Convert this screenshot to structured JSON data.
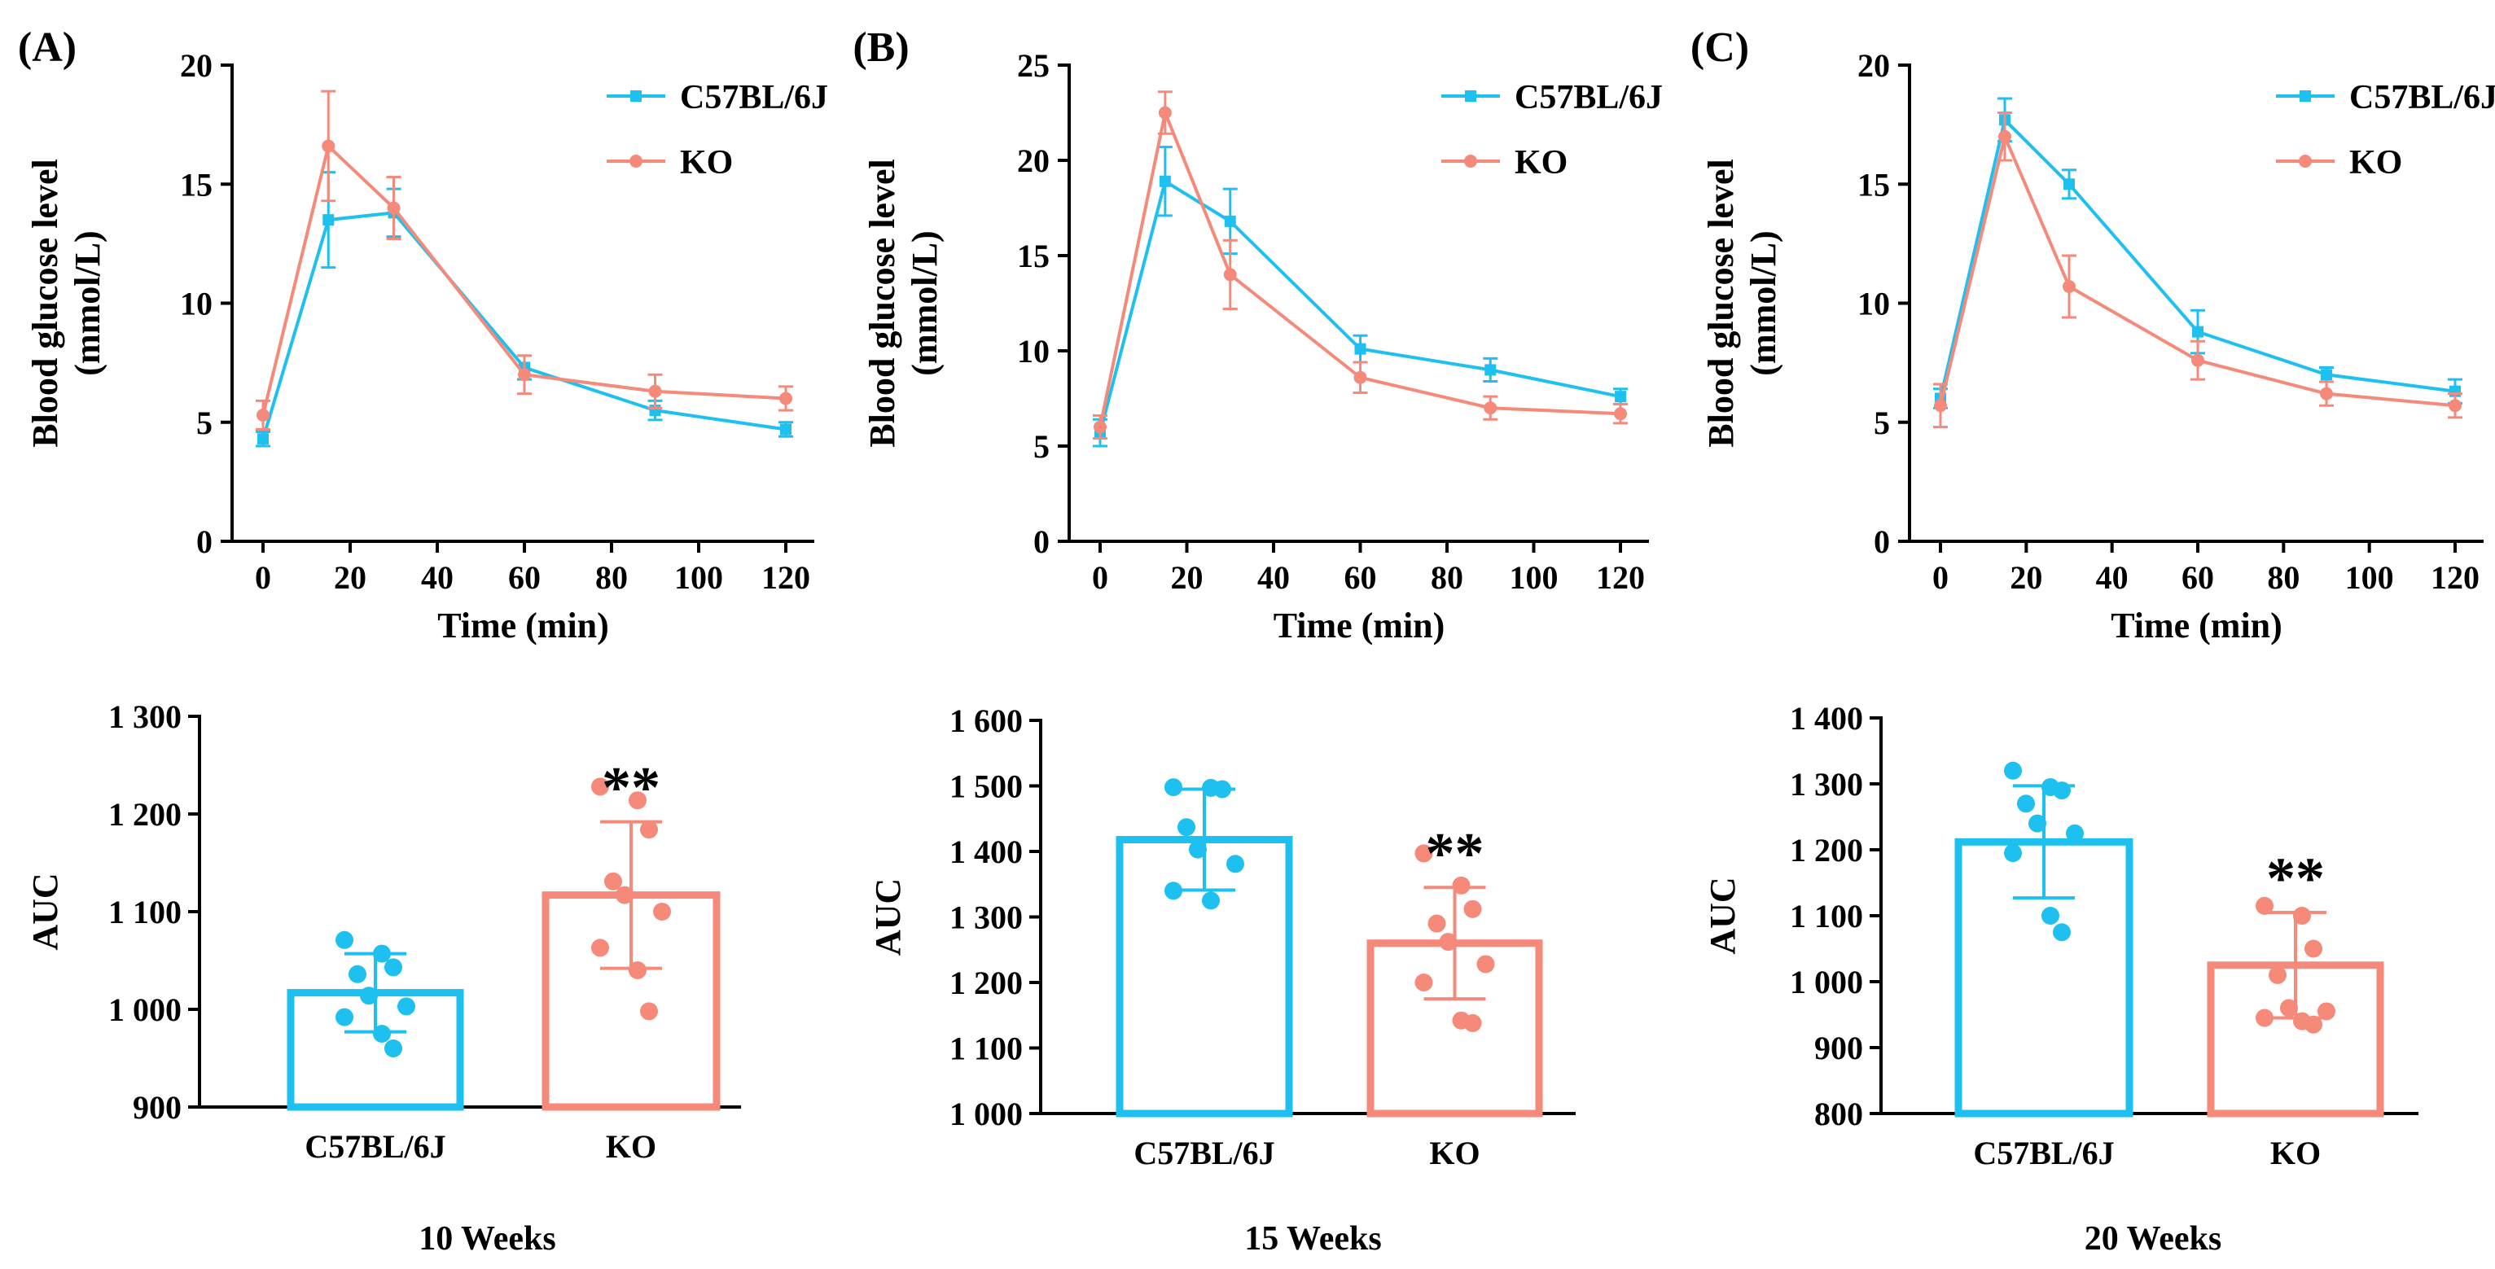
{
  "colors": {
    "wt": "#1ec0f0",
    "ko": "#f58a7b"
  },
  "chart_data": [
    {
      "type": "line",
      "panel_label": "(A)",
      "xlabel": "Time (min)",
      "ylabel_line1": "Blood glucose level",
      "ylabel_line2": "(mmol/L)",
      "x": [
        0,
        15,
        30,
        60,
        90,
        120
      ],
      "xticks": [
        0,
        20,
        40,
        60,
        80,
        100,
        120
      ],
      "xlim": [
        0,
        120
      ],
      "ylim": [
        0,
        20
      ],
      "yticks": [
        0,
        5,
        10,
        15,
        20
      ],
      "legend_position": "top-right",
      "series": [
        {
          "name": "C57BL/6J",
          "values": [
            4.3,
            13.5,
            13.8,
            7.3,
            5.5,
            4.7
          ],
          "errors": [
            0.3,
            2.0,
            1.0,
            0.5,
            0.4,
            0.3
          ]
        },
        {
          "name": "KO",
          "values": [
            5.3,
            16.6,
            14.0,
            7.0,
            6.3,
            6.0
          ],
          "errors": [
            0.6,
            2.3,
            1.3,
            0.8,
            0.7,
            0.5
          ]
        }
      ]
    },
    {
      "type": "line",
      "panel_label": "(B)",
      "xlabel": "Time (min)",
      "ylabel_line1": "Blood glucose level",
      "ylabel_line2": "(mmol/L)",
      "x": [
        0,
        15,
        30,
        60,
        90,
        120
      ],
      "xticks": [
        0,
        20,
        40,
        60,
        80,
        100,
        120
      ],
      "xlim": [
        0,
        120
      ],
      "ylim": [
        0,
        25
      ],
      "yticks": [
        0,
        5,
        10,
        15,
        20,
        25
      ],
      "legend_position": "top-right",
      "series": [
        {
          "name": "C57BL/6J",
          "values": [
            5.7,
            18.9,
            16.8,
            10.1,
            9.0,
            7.6
          ],
          "errors": [
            0.7,
            1.8,
            1.7,
            0.7,
            0.6,
            0.4
          ]
        },
        {
          "name": "KO",
          "values": [
            6.0,
            22.5,
            14.0,
            8.6,
            7.0,
            6.7
          ],
          "errors": [
            0.6,
            1.1,
            1.8,
            0.8,
            0.6,
            0.5
          ]
        }
      ]
    },
    {
      "type": "line",
      "panel_label": "(C)",
      "xlabel": "Time (min)",
      "ylabel_line1": "Blood glucose level",
      "ylabel_line2": "(mmol/L)",
      "x": [
        0,
        15,
        30,
        60,
        90,
        120
      ],
      "xticks": [
        0,
        20,
        40,
        60,
        80,
        100,
        120
      ],
      "xlim": [
        0,
        120
      ],
      "ylim": [
        0,
        20
      ],
      "yticks": [
        0,
        5,
        10,
        15,
        20
      ],
      "legend_position": "top-right",
      "series": [
        {
          "name": "C57BL/6J",
          "values": [
            6.0,
            17.7,
            15.0,
            8.8,
            7.0,
            6.3
          ],
          "errors": [
            0.4,
            0.9,
            0.6,
            0.9,
            0.3,
            0.5
          ]
        },
        {
          "name": "KO",
          "values": [
            5.7,
            17.0,
            10.7,
            7.6,
            6.2,
            5.7
          ],
          "errors": [
            0.9,
            1.0,
            1.3,
            0.8,
            0.5,
            0.5
          ]
        }
      ]
    },
    {
      "type": "bar",
      "group_title": "10 Weeks",
      "ylabel": "AUC",
      "categories": [
        "C57BL/6J",
        "KO"
      ],
      "ylim": [
        900,
        1300
      ],
      "yticks": [
        900,
        1000,
        1100,
        1200,
        1300
      ],
      "ytick_labels": [
        "900",
        "1 000",
        "1 100",
        "1 200",
        "1 300"
      ],
      "values": [
        1017,
        1117
      ],
      "errors": [
        40,
        75
      ],
      "significance": "**",
      "points": [
        [
          1071,
          1057,
          1043,
          1036,
          1014,
          1003,
          992,
          975,
          960
        ],
        [
          1228,
          1214,
          1184,
          1131,
          1117,
          1100,
          1063,
          1040,
          998
        ]
      ]
    },
    {
      "type": "bar",
      "group_title": "15 Weeks",
      "ylabel": "AUC",
      "categories": [
        "C57BL/6J",
        "KO"
      ],
      "ylim": [
        1000,
        1600
      ],
      "yticks": [
        1000,
        1100,
        1200,
        1300,
        1400,
        1500,
        1600
      ],
      "ytick_labels": [
        "1 000",
        "1 100",
        "1 200",
        "1 300",
        "1 400",
        "1 500",
        "1 600"
      ],
      "values": [
        1418,
        1260
      ],
      "errors": [
        77,
        85
      ],
      "significance": "**",
      "points": [
        [
          1498,
          1497,
          1495,
          1437,
          1403,
          1381,
          1340,
          1325
        ],
        [
          1397,
          1348,
          1312,
          1290,
          1262,
          1228,
          1200,
          1142,
          1138
        ]
      ]
    },
    {
      "type": "bar",
      "group_title": "20 Weeks",
      "ylabel": "AUC",
      "categories": [
        "C57BL/6J",
        "KO"
      ],
      "ylim": [
        800,
        1400
      ],
      "yticks": [
        800,
        900,
        1000,
        1100,
        1200,
        1300,
        1400
      ],
      "ytick_labels": [
        "800",
        "900",
        "1 000",
        "1 100",
        "1 200",
        "1 300",
        "1 400"
      ],
      "values": [
        1212,
        1025
      ],
      "errors": [
        85,
        80
      ],
      "significance": "**",
      "points": [
        [
          1320,
          1295,
          1290,
          1270,
          1240,
          1225,
          1195,
          1100,
          1075
        ],
        [
          1115,
          1100,
          1050,
          1010,
          960,
          955,
          945,
          940,
          935
        ]
      ]
    }
  ]
}
